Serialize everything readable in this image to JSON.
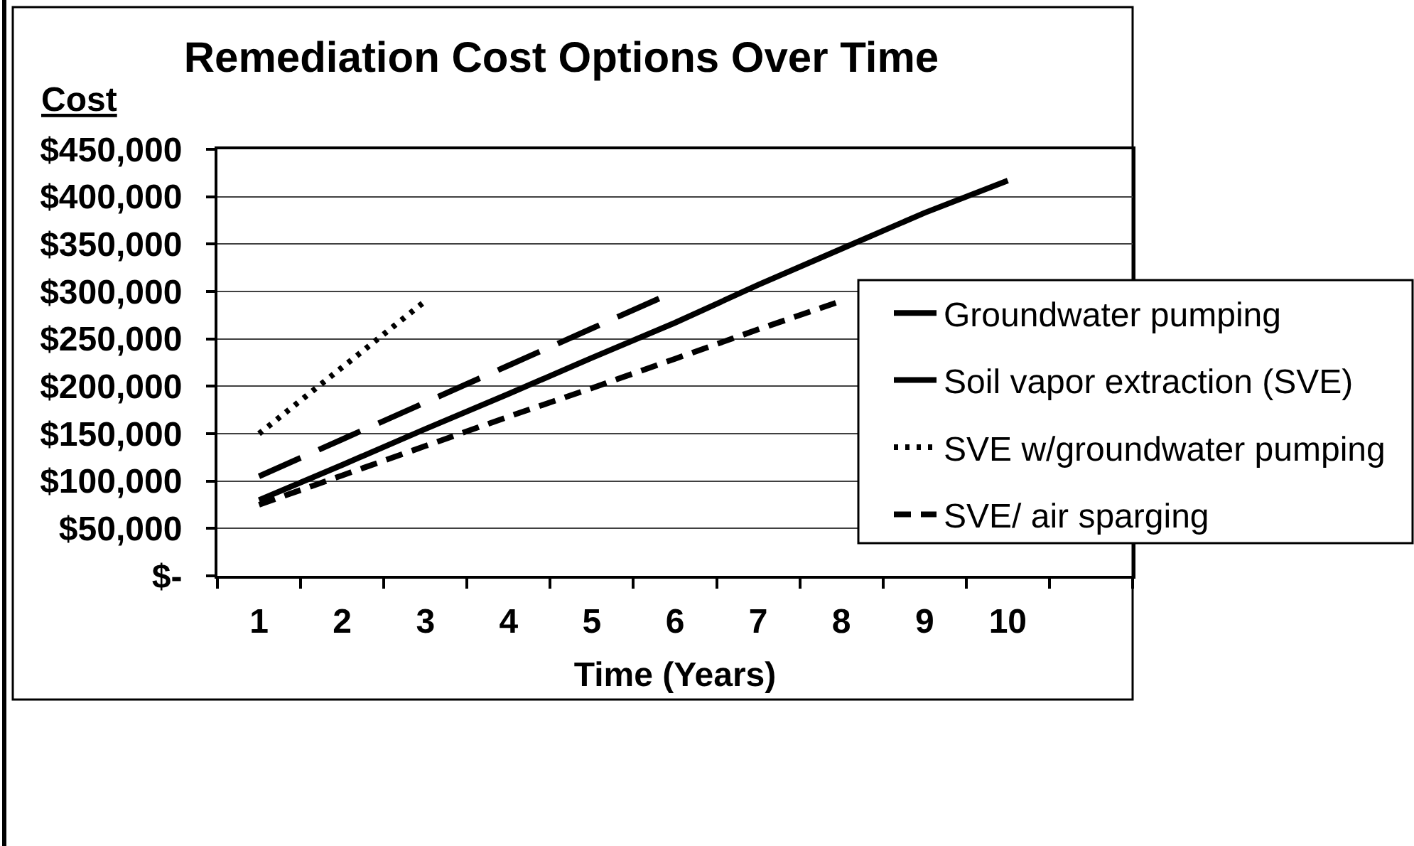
{
  "chart_data": {
    "type": "line",
    "title": "Remediation Cost Options Over Time",
    "xlabel": "Time (Years)",
    "ylabel": "Cost",
    "categories": [
      "1",
      "2",
      "3",
      "4",
      "5",
      "6",
      "7",
      "8",
      "9",
      "10",
      null
    ],
    "series": [
      {
        "name": "Groundwater pumping",
        "color": "#000000",
        "line_style": "solid",
        "values": [
          80000,
          117000,
          155000,
          192000,
          230000,
          267000,
          307000,
          345000,
          383000,
          417000,
          null
        ]
      },
      {
        "name": "Soil vapor extraction (SVE)",
        "color": "#000000",
        "line_style": "longdash",
        "values": [
          105000,
          144000,
          183000,
          222000,
          261000,
          300000,
          null,
          null,
          null,
          null,
          null
        ]
      },
      {
        "name": "SVE w/groundwater pumping",
        "color": "#000000",
        "line_style": "dotted",
        "values": [
          150000,
          220000,
          290000,
          null,
          null,
          null,
          null,
          null,
          null,
          null,
          null
        ]
      },
      {
        "name": "SVE/ air sparging",
        "color": "#000000",
        "line_style": "dashed",
        "values": [
          75000,
          106000,
          137000,
          168000,
          198000,
          229000,
          260000,
          290000,
          null,
          null,
          null
        ]
      }
    ],
    "ylim": [
      0,
      450000
    ],
    "yticks": [
      {
        "value": 0,
        "label": "$-"
      },
      {
        "value": 50000,
        "label": "$50,000"
      },
      {
        "value": 100000,
        "label": "$100,000"
      },
      {
        "value": 150000,
        "label": "$150,000"
      },
      {
        "value": 200000,
        "label": "$200,000"
      },
      {
        "value": 250000,
        "label": "$250,000"
      },
      {
        "value": 300000,
        "label": "$300,000"
      },
      {
        "value": 350000,
        "label": "$350,000"
      },
      {
        "value": 400000,
        "label": "$400,000"
      },
      {
        "value": 450000,
        "label": "$450,000"
      }
    ],
    "grid": "y",
    "legend": "right"
  }
}
